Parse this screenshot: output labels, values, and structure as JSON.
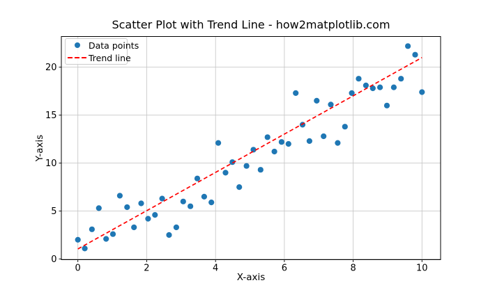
{
  "chart_data": {
    "type": "scatter",
    "title": "Scatter Plot with Trend Line - how2matplotlib.com",
    "xlabel": "X-axis",
    "ylabel": "Y-axis",
    "xlim": [
      -0.48,
      10.54
    ],
    "ylim": [
      -0.07,
      23.2
    ],
    "xticks": [
      0,
      2,
      4,
      6,
      8,
      10
    ],
    "yticks": [
      0,
      5,
      10,
      15,
      20
    ],
    "grid": true,
    "grid_color": "#c9c9c9",
    "axis_color": "#000000",
    "legend_position": "upper left",
    "series": [
      {
        "name": "Data points",
        "type": "scatter",
        "color": "#1f77b4",
        "x": [
          0,
          0.2,
          0.41,
          0.61,
          0.82,
          1.02,
          1.22,
          1.43,
          1.63,
          1.84,
          2.04,
          2.24,
          2.45,
          2.65,
          2.86,
          3.06,
          3.27,
          3.47,
          3.67,
          3.88,
          4.08,
          4.29,
          4.49,
          4.69,
          4.9,
          5.1,
          5.31,
          5.51,
          5.71,
          5.92,
          6.12,
          6.33,
          6.53,
          6.73,
          6.94,
          7.14,
          7.35,
          7.55,
          7.76,
          7.96,
          8.16,
          8.37,
          8.57,
          8.78,
          8.98,
          9.18,
          9.39,
          9.59,
          9.8,
          10
        ],
        "y": [
          2.0,
          1.1,
          3.1,
          5.3,
          2.1,
          2.6,
          6.6,
          5.4,
          3.3,
          5.8,
          4.2,
          4.6,
          6.3,
          2.5,
          3.3,
          6.0,
          5.5,
          8.4,
          6.5,
          5.9,
          12.1,
          9.0,
          10.1,
          7.5,
          9.7,
          11.4,
          9.3,
          12.7,
          11.2,
          12.2,
          12.0,
          17.3,
          14.0,
          12.3,
          16.5,
          12.8,
          16.1,
          12.1,
          13.8,
          17.3,
          18.8,
          18.1,
          17.8,
          17.9,
          16.0,
          17.9,
          18.8,
          22.2,
          21.3,
          17.4
        ]
      },
      {
        "name": "Trend line",
        "type": "line",
        "style": "dashed",
        "color": "#ff0000",
        "x": [
          0,
          10
        ],
        "y": [
          1.05,
          21.0
        ]
      }
    ]
  }
}
